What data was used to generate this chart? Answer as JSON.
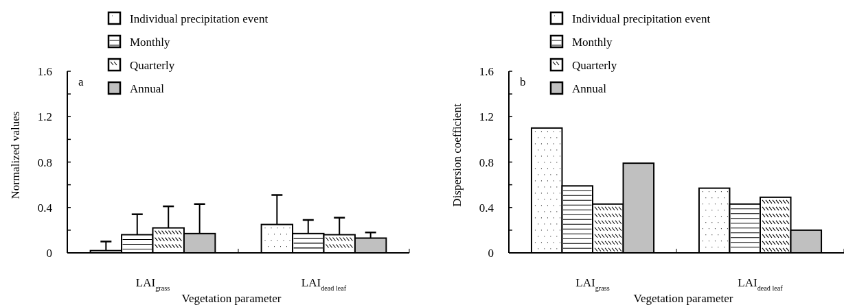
{
  "chart_data": [
    {
      "type": "bar",
      "xlabel": "Vegetation parameter",
      "ylabel": "Normalized values",
      "categories": [
        "LAI$_{grass}$",
        "LAI$_{dead leaf}$"
      ],
      "ylim": [
        0,
        1.6
      ],
      "yticks": [
        0,
        {
          "value": 0.2,
          "label": null
        },
        0.4,
        {
          "value": 0.6,
          "label": null
        },
        0.8,
        {
          "value": 1.0,
          "label": null
        },
        1.2,
        {
          "value": 1.4,
          "label": null
        },
        1.6
      ],
      "legend": "top",
      "annotations": [
        "a"
      ],
      "series": [
        {
          "name": "Individual precipitation event",
          "color": "#ffffff",
          "values": [
            0.02,
            0.25
          ],
          "errors": [
            [
              0.02,
              0.1
            ],
            [
              0.25,
              0.51
            ]
          ]
        },
        {
          "name": "Monthly",
          "color": "#ffffff",
          "values": [
            0.16,
            0.17
          ],
          "errors": [
            [
              0.16,
              0.34
            ],
            [
              0.17,
              0.29
            ]
          ]
        },
        {
          "name": "Quarterly",
          "color": "#ffffff",
          "values": [
            0.22,
            0.16
          ],
          "errors": [
            [
              0.22,
              0.41
            ],
            [
              0.16,
              0.31
            ]
          ]
        },
        {
          "name": "Annual",
          "color": "#c0c0c0",
          "values": [
            0.17,
            0.13
          ],
          "errors": [
            [
              0.17,
              0.43
            ],
            [
              0.13,
              0.18
            ]
          ]
        }
      ]
    },
    {
      "type": "bar",
      "xlabel": "Vegetation parameter",
      "ylabel": "Dispersion coefficient",
      "categories": [
        "LAI$_{grass}$",
        "LAI$_{dead leaf}$"
      ],
      "ylim": [
        0,
        1.6
      ],
      "yticks": [
        0,
        {
          "value": 0.2,
          "label": null
        },
        0.4,
        {
          "value": 0.6,
          "label": null
        },
        0.8,
        {
          "value": 1.0,
          "label": null
        },
        1.2,
        {
          "value": 1.4,
          "label": null
        },
        1.6
      ],
      "legend": "top",
      "annotations": [
        "b"
      ],
      "series": [
        {
          "name": "Individual precipitation event",
          "color": "#ffffff",
          "values": [
            1.1,
            0.57
          ]
        },
        {
          "name": "Monthly",
          "color": "#ffffff",
          "values": [
            0.59,
            0.43
          ]
        },
        {
          "name": "Quarterly",
          "color": "#ffffff",
          "values": [
            0.43,
            0.49
          ]
        },
        {
          "name": "Annual",
          "color": "#c0c0c0",
          "values": [
            0.79,
            0.2
          ]
        }
      ]
    }
  ]
}
